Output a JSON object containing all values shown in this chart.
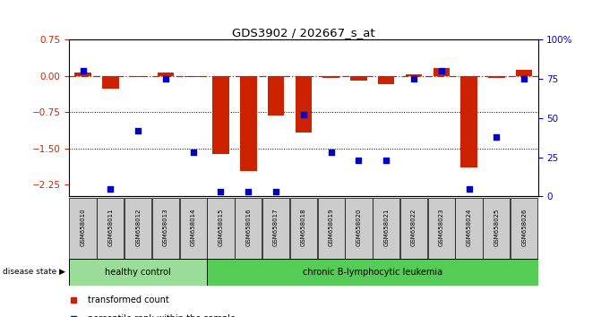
{
  "title": "GDS3902 / 202667_s_at",
  "samples": [
    "GSM658010",
    "GSM658011",
    "GSM658012",
    "GSM658013",
    "GSM658014",
    "GSM658015",
    "GSM658016",
    "GSM658017",
    "GSM658018",
    "GSM658019",
    "GSM658020",
    "GSM658021",
    "GSM658022",
    "GSM658023",
    "GSM658024",
    "GSM658025",
    "GSM658026"
  ],
  "red_bars": [
    0.07,
    -0.27,
    -0.02,
    0.07,
    -0.02,
    -1.62,
    -1.97,
    -0.82,
    -1.18,
    -0.05,
    -0.1,
    -0.18,
    0.03,
    0.17,
    -1.9,
    -0.05,
    0.12
  ],
  "blue_dots": [
    80,
    5,
    42,
    75,
    28,
    3,
    3,
    3,
    52,
    28,
    23,
    23,
    75,
    80,
    5,
    38,
    75
  ],
  "healthy_count": 5,
  "disease_state_healthy": "healthy control",
  "disease_state_leukemia": "chronic B-lymphocytic leukemia",
  "left_ylim": [
    -2.5,
    0.75
  ],
  "right_ylim": [
    0,
    100
  ],
  "left_yticks": [
    0.75,
    0.0,
    -0.75,
    -1.5,
    -2.25
  ],
  "right_yticks": [
    100,
    75,
    50,
    25,
    0
  ],
  "right_yticklabels": [
    "100%",
    "75",
    "50",
    "25",
    "0"
  ],
  "zero_line_color": "#cc2200",
  "bar_color": "#cc2200",
  "dot_color": "#0000cc",
  "background_color": "#ffffff",
  "plot_bg": "#ffffff",
  "label_color_left": "#cc2200",
  "label_color_right": "#0000cc",
  "grid_color": "#000000",
  "healthy_bg": "#99dd99",
  "leukemia_bg": "#55cc55",
  "tick_bg": "#cccccc"
}
